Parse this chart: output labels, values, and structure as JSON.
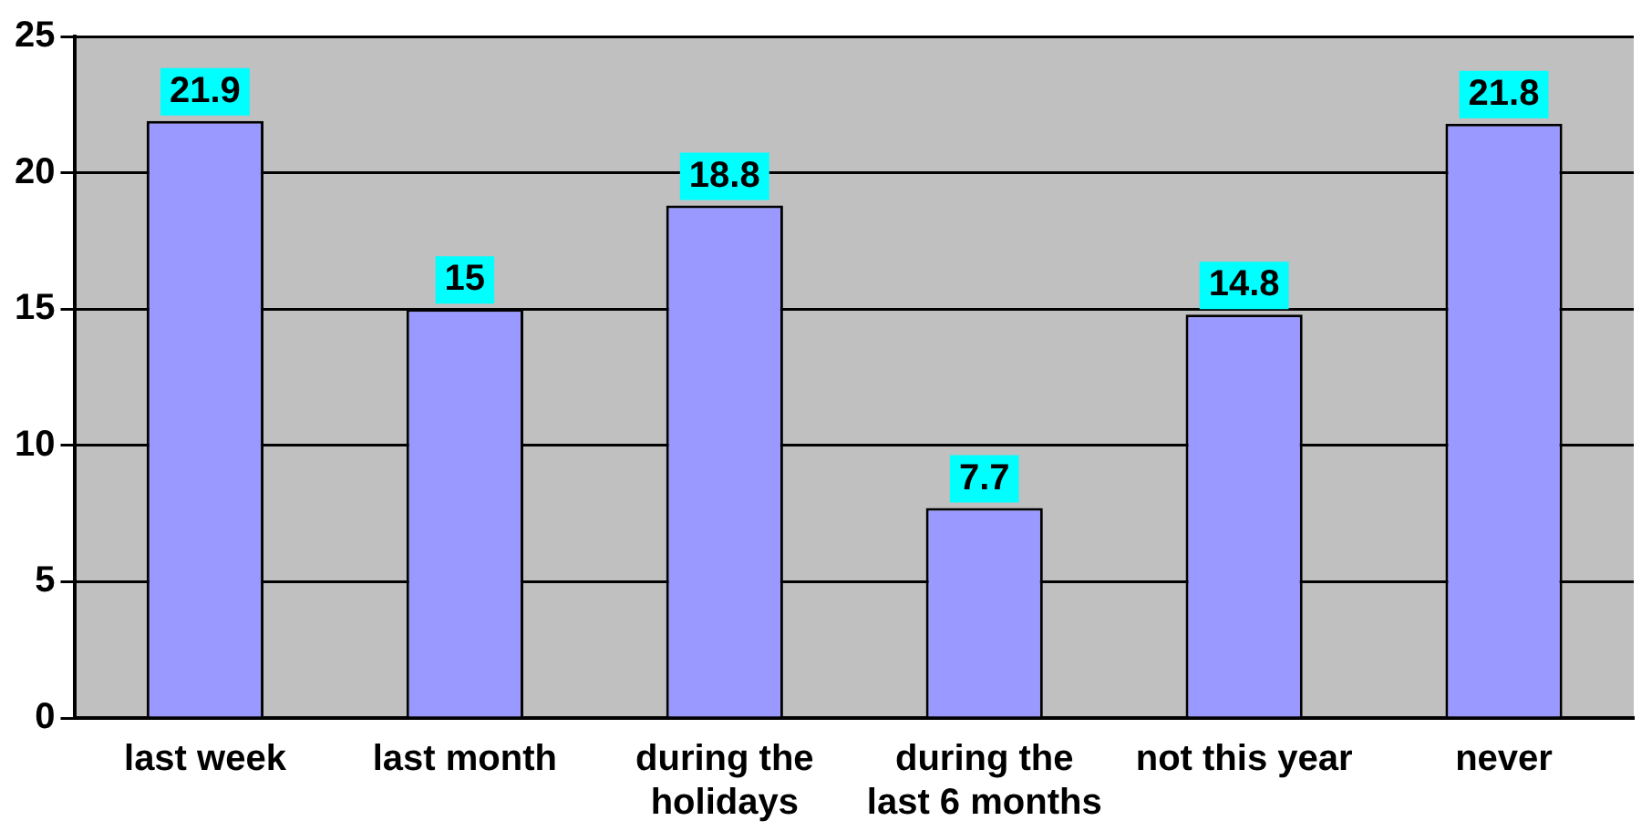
{
  "chart_data": {
    "type": "bar",
    "categories": [
      "last week",
      "last month",
      "during the holidays",
      "during the last 6 months",
      "not this year",
      "never"
    ],
    "values": [
      21.9,
      15,
      18.8,
      7.7,
      14.8,
      21.8
    ],
    "color": "#9999ff",
    "ylim": [
      0,
      25
    ],
    "yticks": [
      0,
      5,
      10,
      15,
      20,
      25
    ],
    "grid": "y",
    "legend": false,
    "data_labels": true
  }
}
